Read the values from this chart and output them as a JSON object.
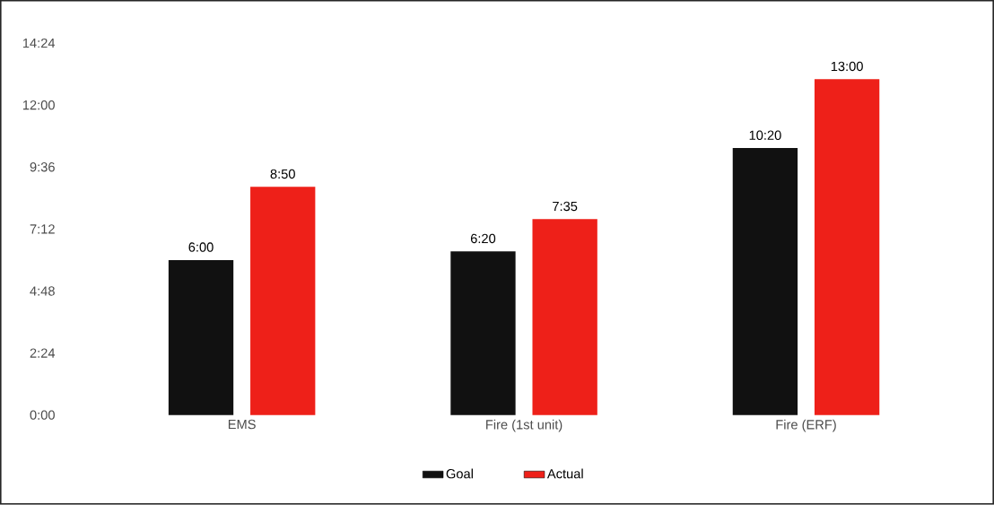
{
  "chart_data": {
    "type": "bar",
    "categories": [
      "EMS",
      "Fire (1st unit)",
      "Fire (ERF)"
    ],
    "series": [
      {
        "name": "Goal",
        "color": "#111111",
        "values": [
          6,
          6.3333,
          10.3333
        ],
        "value_labels": [
          "6:00",
          "6:20",
          "10:20"
        ]
      },
      {
        "name": "Actual",
        "color": "#ee2019",
        "values": [
          8.8333,
          7.5833,
          13
        ],
        "value_labels": [
          "8:50",
          "7:35",
          "13:00"
        ]
      }
    ],
    "ylim": [
      0,
      14.4
    ],
    "yticks": [
      {
        "value": 0,
        "label": "0:00"
      },
      {
        "value": 2.4,
        "label": "2:24"
      },
      {
        "value": 4.8,
        "label": "4:48"
      },
      {
        "value": 7.2,
        "label": "7:12"
      },
      {
        "value": 9.6,
        "label": "9:36"
      },
      {
        "value": 12,
        "label": "12:00"
      },
      {
        "value": 14.4,
        "label": "14:24"
      }
    ],
    "grid": false,
    "legend": "bottom"
  }
}
